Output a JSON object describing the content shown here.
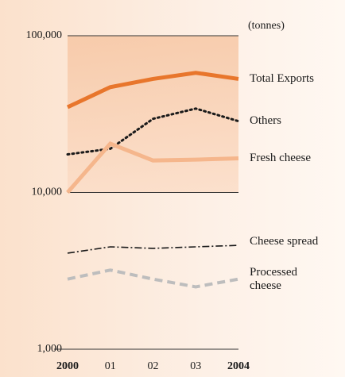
{
  "chart_data": {
    "type": "line",
    "unit_label": "(tonnes)",
    "categories": [
      "2000",
      "01",
      "02",
      "03",
      "2004"
    ],
    "log_scale": true,
    "ylim": [
      1000,
      100000
    ],
    "yticks": [
      {
        "value": 1000,
        "label": "1,000"
      },
      {
        "value": 10000,
        "label": "10,000"
      },
      {
        "value": 100000,
        "label": "100,000"
      }
    ],
    "grid": true,
    "series": [
      {
        "name": "Total Exports",
        "color": "#e8762c",
        "style": "solid",
        "width": 5,
        "values": [
          35000,
          47000,
          53000,
          58000,
          53000
        ]
      },
      {
        "name": "Others",
        "color": "#1a1a1a",
        "style": "dotted",
        "width": 3,
        "values": [
          17500,
          19000,
          29500,
          34300,
          28500
        ]
      },
      {
        "name": "Fresh cheese",
        "color": "#f5b68c",
        "style": "solid",
        "width": 5,
        "values": [
          10000,
          20500,
          16000,
          16200,
          16500
        ]
      },
      {
        "name": "Cheese spread",
        "color": "#1a1a1a",
        "style": "dashdot",
        "width": 1.6,
        "values": [
          4100,
          4500,
          4400,
          4500,
          4600
        ]
      },
      {
        "name": "Processed cheese",
        "color": "#bdbdbd",
        "style": "dashed",
        "width": 4,
        "values": [
          2800,
          3200,
          2800,
          2500,
          2800
        ]
      }
    ]
  }
}
